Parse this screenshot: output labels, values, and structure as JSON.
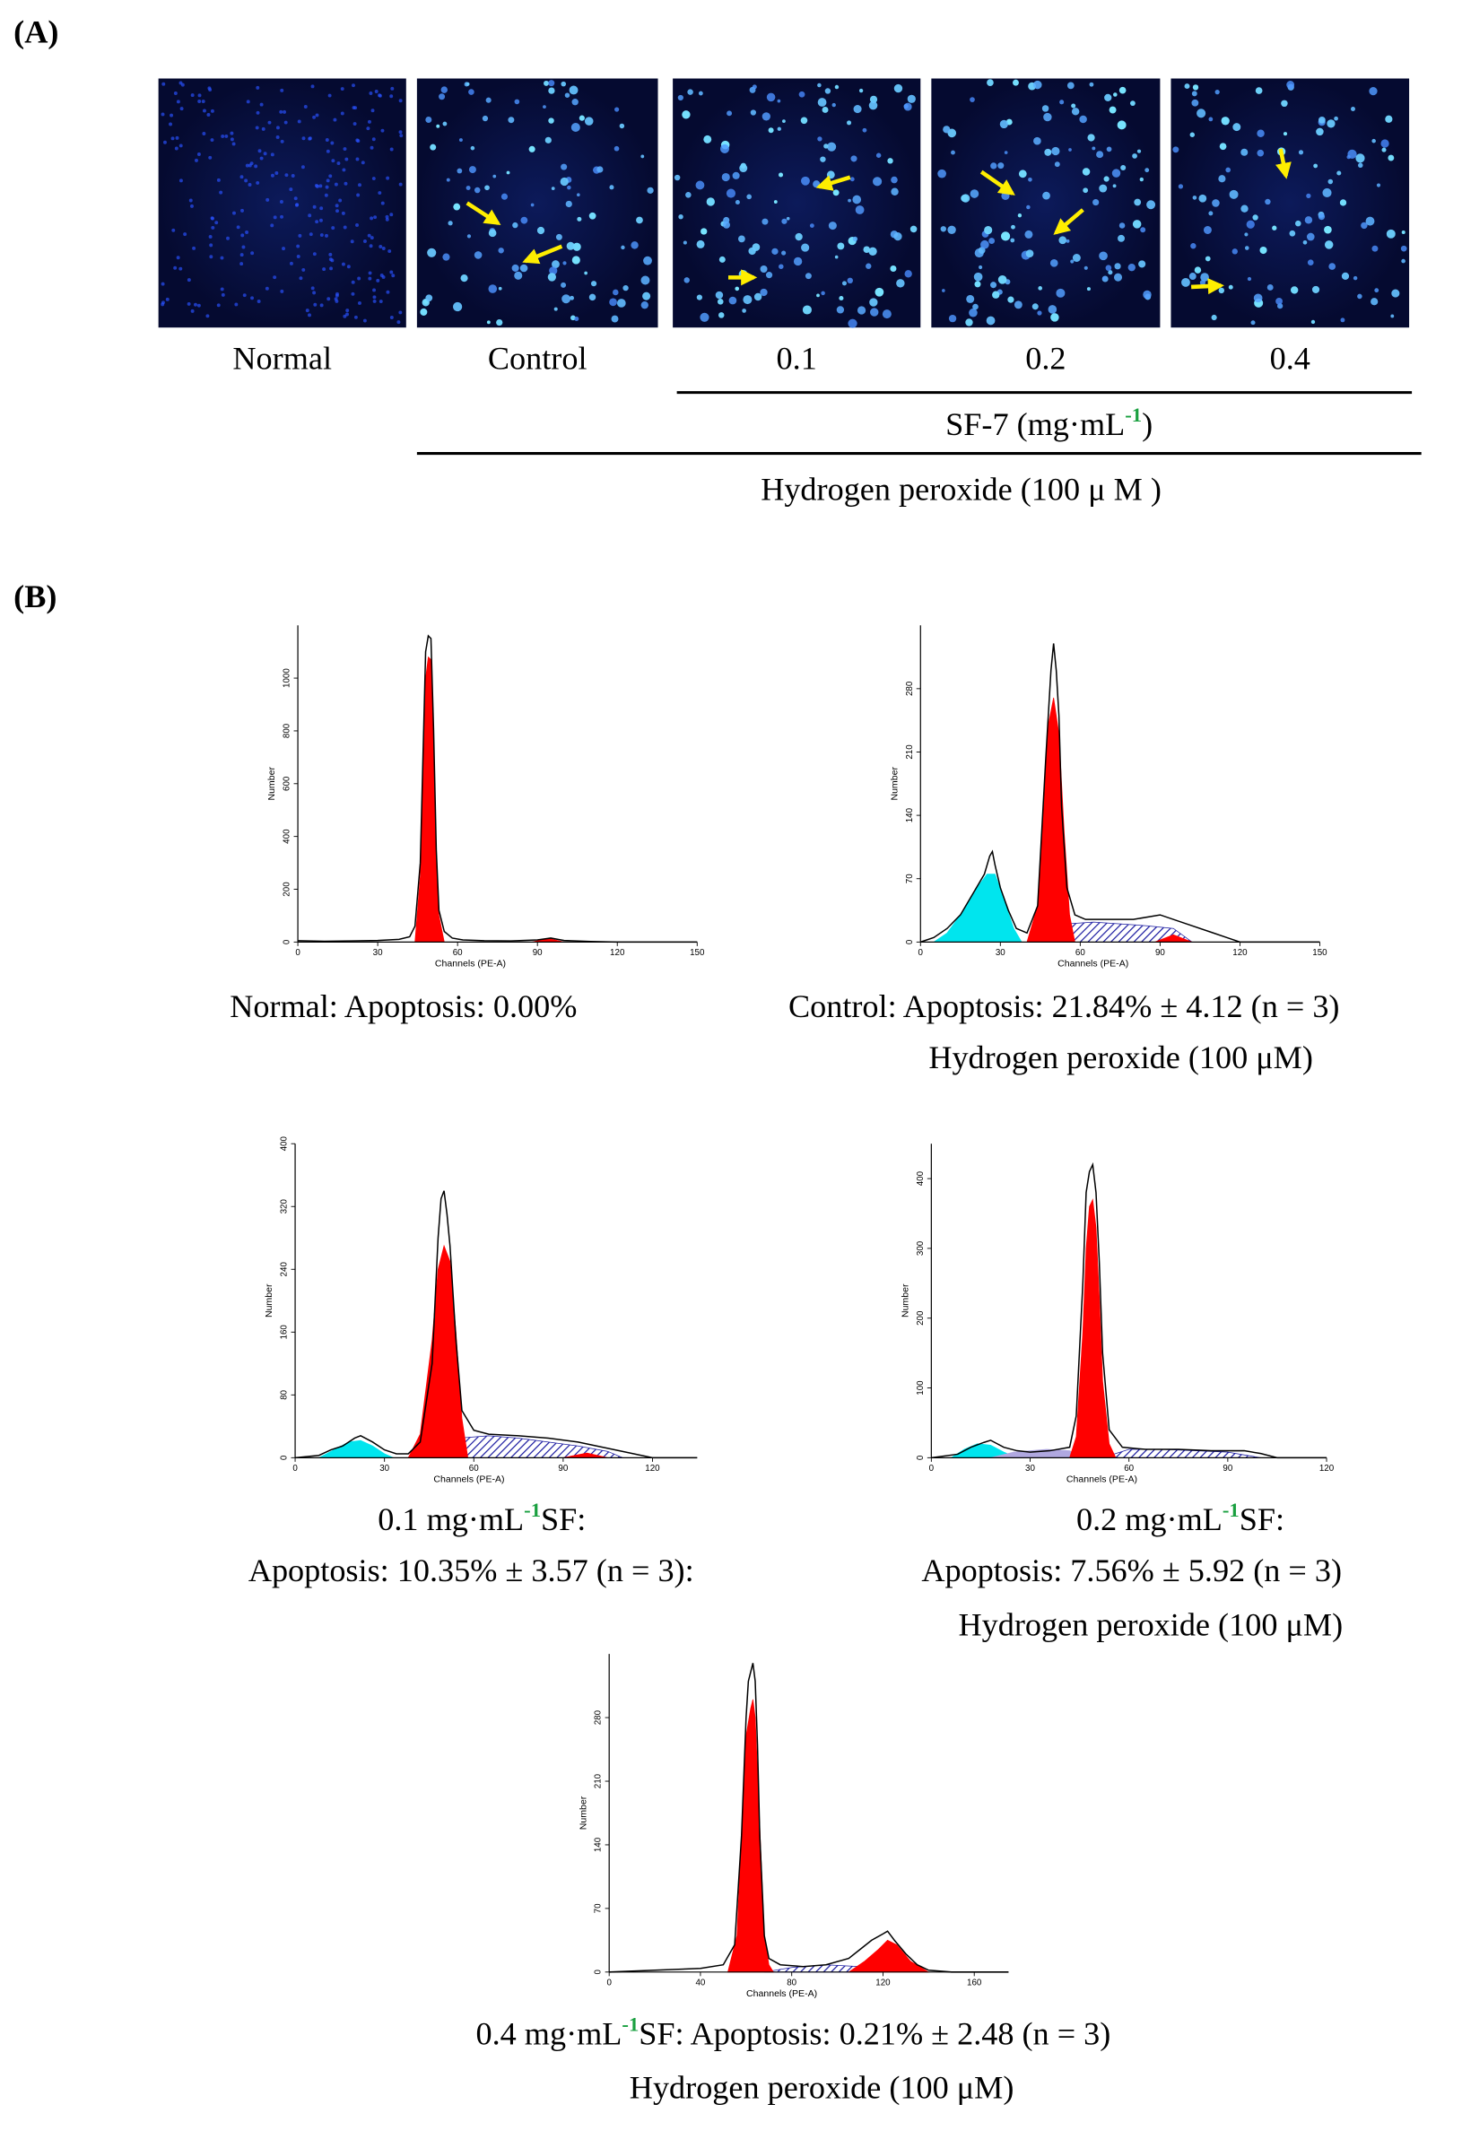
{
  "panel_labels": [
    "(A)",
    "(B)"
  ],
  "micrographs": [
    "Normal",
    "Control",
    "0.1",
    "0.2",
    "0.4"
  ],
  "sf_label": [
    "SF-7 (mg·mL",
    {
      "sup": "-1"
    },
    ")"
  ],
  "h2o2_label": "Hydrogen peroxide (100 μ M )",
  "chart_data": [
    {
      "type": "area",
      "xlabel": "Channels (PE-A)",
      "ylabel": "Number",
      "xlim": [
        0,
        150
      ],
      "xticks": [
        0,
        30,
        60,
        90,
        120,
        150
      ],
      "ylim": [
        0,
        1200
      ],
      "yticks": [
        0,
        200,
        400,
        600,
        800,
        1000
      ],
      "caption": [
        [
          "Normal: Apoptosis: 0.00%"
        ]
      ],
      "series": [
        {
          "color": "#ff0000",
          "fill": true,
          "x": [
            44,
            46,
            47,
            48,
            49,
            50,
            51,
            52,
            53,
            55
          ],
          "values": [
            0,
            250,
            650,
            1000,
            1080,
            1070,
            700,
            300,
            100,
            0
          ]
        },
        {
          "color": "#ff0000",
          "fill": true,
          "x": [
            88,
            94,
            100
          ],
          "values": [
            0,
            14,
            0
          ]
        },
        {
          "color": "#000000",
          "fill": false,
          "x": [
            0,
            10,
            20,
            30,
            38,
            42,
            44,
            46,
            47,
            48,
            49,
            50,
            51,
            52,
            53,
            55,
            58,
            62,
            70,
            80,
            90,
            95,
            100,
            110,
            120,
            150
          ],
          "values": [
            5,
            3,
            4,
            6,
            10,
            20,
            60,
            300,
            700,
            1100,
            1160,
            1150,
            800,
            350,
            120,
            40,
            15,
            8,
            5,
            4,
            8,
            15,
            6,
            2,
            0,
            0
          ]
        }
      ]
    },
    {
      "type": "area",
      "xlabel": "Channels (PE-A)",
      "ylabel": "Number",
      "xlim": [
        0,
        150
      ],
      "xticks": [
        0,
        30,
        60,
        90,
        120,
        150
      ],
      "ylim": [
        0,
        350
      ],
      "yticks": [
        0,
        70,
        140,
        210,
        280
      ],
      "caption": [
        [
          "Control: Apoptosis: 21.84% ± 4.12 (n = 3)"
        ],
        [
          "Hydrogen peroxide (100 μM)"
        ]
      ],
      "series": [
        {
          "color": "#00e5ee",
          "fill": true,
          "x": [
            5,
            10,
            15,
            20,
            25,
            28,
            31,
            35,
            38
          ],
          "values": [
            0,
            10,
            30,
            55,
            75,
            75,
            50,
            15,
            0
          ]
        },
        {
          "color": "#1a1aa0",
          "fill": "hatch",
          "x": [
            45,
            55,
            65,
            75,
            85,
            95,
            102
          ],
          "values": [
            0,
            20,
            22,
            20,
            18,
            15,
            0
          ]
        },
        {
          "color": "#ff0000",
          "fill": true,
          "x": [
            40,
            44,
            46,
            48,
            50,
            52,
            54,
            56,
            58
          ],
          "values": [
            0,
            40,
            140,
            240,
            270,
            230,
            120,
            30,
            0
          ]
        },
        {
          "color": "#ff0000",
          "fill": true,
          "x": [
            88,
            95,
            102
          ],
          "values": [
            0,
            8,
            0
          ]
        },
        {
          "color": "#000000",
          "fill": false,
          "x": [
            0,
            5,
            10,
            15,
            20,
            24,
            26,
            27,
            28,
            30,
            33,
            36,
            40,
            44,
            47,
            49,
            50,
            51,
            52,
            53,
            55,
            58,
            62,
            70,
            80,
            90,
            100,
            110,
            115,
            120,
            150
          ],
          "values": [
            0,
            5,
            15,
            30,
            55,
            75,
            95,
            100,
            85,
            60,
            35,
            15,
            10,
            40,
            200,
            300,
            330,
            300,
            250,
            150,
            60,
            30,
            25,
            25,
            25,
            30,
            20,
            10,
            5,
            0,
            0
          ]
        }
      ]
    },
    {
      "type": "area",
      "xlabel": "Channels (PE-A)",
      "ylabel": "Number",
      "xlim": [
        0,
        135
      ],
      "xticks": [
        0,
        30,
        60,
        90,
        120
      ],
      "ylim": [
        0,
        400
      ],
      "yticks": [
        0,
        80,
        160,
        240,
        320,
        400
      ],
      "caption": [
        [
          "0.1 mg·mL",
          {
            "sup": "-1"
          },
          "SF:"
        ],
        [
          "Apoptosis: 10.35% ± 3.57 (n = 3):"
        ]
      ],
      "series": [
        {
          "color": "#00e5ee",
          "fill": true,
          "x": [
            8,
            14,
            18,
            22,
            26,
            30,
            33
          ],
          "values": [
            0,
            12,
            20,
            22,
            15,
            5,
            0
          ]
        },
        {
          "color": "#1a1aa0",
          "fill": "hatch",
          "x": [
            45,
            55,
            65,
            75,
            85,
            95,
            105,
            110
          ],
          "values": [
            0,
            25,
            28,
            25,
            20,
            15,
            8,
            0
          ]
        },
        {
          "color": "#ff0000",
          "fill": true,
          "x": [
            38,
            42,
            46,
            48,
            50,
            52,
            54,
            56,
            58
          ],
          "values": [
            0,
            30,
            150,
            240,
            270,
            250,
            160,
            50,
            0
          ]
        },
        {
          "color": "#ff0000",
          "fill": true,
          "x": [
            90,
            98,
            105
          ],
          "values": [
            0,
            6,
            0
          ]
        },
        {
          "color": "#000000",
          "fill": false,
          "x": [
            0,
            8,
            12,
            16,
            20,
            22,
            26,
            30,
            34,
            38,
            42,
            46,
            48,
            49,
            50,
            51,
            52,
            54,
            56,
            60,
            65,
            75,
            85,
            95,
            105,
            115,
            120,
            135
          ],
          "values": [
            0,
            3,
            10,
            15,
            25,
            28,
            20,
            10,
            5,
            5,
            20,
            120,
            280,
            330,
            340,
            310,
            270,
            150,
            60,
            35,
            30,
            28,
            25,
            20,
            12,
            4,
            0,
            0
          ]
        }
      ]
    },
    {
      "type": "area",
      "xlabel": "Channels (PE-A)",
      "ylabel": "Number",
      "xlim": [
        0,
        120
      ],
      "xticks": [
        0,
        30,
        60,
        90,
        120
      ],
      "ylim": [
        0,
        450
      ],
      "yticks": [
        0,
        100,
        200,
        300,
        400
      ],
      "caption": [
        [
          "0.2 mg·mL",
          {
            "sup": "-1"
          },
          "SF:"
        ],
        [
          "Apoptosis: 7.56% ± 5.92 (n = 3)"
        ],
        [
          "Hydrogen peroxide (100 μM)"
        ]
      ],
      "series": [
        {
          "color": "#00e5ee",
          "fill": true,
          "x": [
            6,
            10,
            14,
            18,
            22,
            26
          ],
          "values": [
            0,
            12,
            20,
            18,
            8,
            0
          ]
        },
        {
          "color": "#b0a8e0",
          "fill": true,
          "x": [
            18,
            25,
            35,
            42,
            46
          ],
          "values": [
            0,
            8,
            12,
            10,
            0
          ]
        },
        {
          "color": "#1a1aa0",
          "fill": "hatch",
          "x": [
            52,
            60,
            70,
            80,
            90,
            100
          ],
          "values": [
            0,
            12,
            12,
            10,
            8,
            0
          ]
        },
        {
          "color": "#ff0000",
          "fill": true,
          "x": [
            42,
            44,
            46,
            47,
            48,
            49,
            50,
            51,
            52,
            54,
            56
          ],
          "values": [
            0,
            30,
            180,
            300,
            360,
            370,
            330,
            230,
            110,
            20,
            0
          ]
        },
        {
          "color": "#000000",
          "fill": false,
          "x": [
            0,
            8,
            12,
            16,
            18,
            22,
            26,
            30,
            36,
            42,
            44,
            46,
            47,
            48,
            49,
            50,
            51,
            52,
            54,
            58,
            65,
            75,
            85,
            95,
            100,
            105,
            120
          ],
          "values": [
            0,
            5,
            15,
            22,
            25,
            15,
            10,
            8,
            10,
            15,
            60,
            250,
            380,
            410,
            420,
            380,
            280,
            150,
            40,
            15,
            12,
            12,
            10,
            10,
            6,
            0,
            0
          ]
        }
      ]
    },
    {
      "type": "area",
      "xlabel": "Channels (PE-A)",
      "ylabel": "Number",
      "xlim": [
        0,
        175
      ],
      "xticks": [
        0,
        40,
        80,
        120,
        160
      ],
      "ylim": [
        0,
        350
      ],
      "yticks": [
        0,
        70,
        140,
        210,
        280
      ],
      "caption": [
        [
          "0.4 mg·mL",
          {
            "sup": "-1"
          },
          "SF: Apoptosis: 0.21% ± 2.48 (n = 3)"
        ],
        [
          "Hydrogen peroxide (100 μM)"
        ]
      ],
      "series": [
        {
          "color": "#1a1aa0",
          "fill": "hatch",
          "x": [
            68,
            80,
            95,
            110,
            120
          ],
          "values": [
            0,
            5,
            8,
            6,
            0
          ]
        },
        {
          "color": "#ff0000",
          "fill": true,
          "x": [
            52,
            56,
            58,
            60,
            62,
            63,
            64,
            66,
            68,
            70,
            72
          ],
          "values": [
            0,
            40,
            150,
            260,
            290,
            300,
            280,
            160,
            40,
            8,
            0
          ]
        },
        {
          "color": "#ff0000",
          "fill": true,
          "x": [
            105,
            112,
            118,
            122,
            126,
            132,
            140
          ],
          "values": [
            0,
            12,
            25,
            35,
            30,
            12,
            0
          ]
        },
        {
          "color": "#000000",
          "fill": false,
          "x": [
            0,
            20,
            40,
            50,
            55,
            58,
            60,
            61,
            62,
            63,
            64,
            65,
            66,
            68,
            70,
            75,
            85,
            95,
            105,
            110,
            115,
            120,
            122,
            125,
            130,
            135,
            140,
            150,
            175
          ],
          "values": [
            0,
            2,
            4,
            8,
            30,
            150,
            280,
            320,
            330,
            340,
            320,
            250,
            150,
            40,
            15,
            8,
            6,
            8,
            15,
            25,
            35,
            42,
            45,
            35,
            20,
            8,
            2,
            0,
            0
          ]
        }
      ]
    }
  ]
}
